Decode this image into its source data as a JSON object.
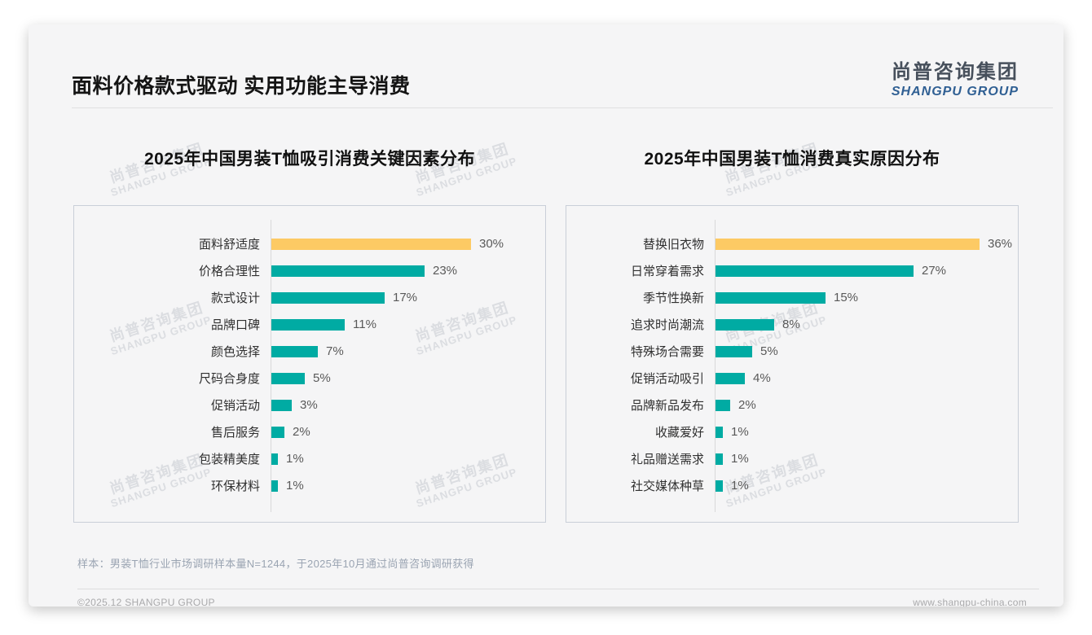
{
  "page": {
    "title": "面料价格款式驱动 实用功能主导消费",
    "logo": {
      "cn": "尚普咨询集团",
      "en": "SHANGPU GROUP"
    },
    "watermark": {
      "cn": "尚普咨询集团",
      "en": "SHANGPU GROUP"
    },
    "note": "样本：男装T恤行业市场调研样本量N=1244，于2025年10月通过尚普咨询调研获得",
    "footer": {
      "left": "©2025.12 SHANGPU GROUP",
      "right": "www.shangpu-china.com"
    }
  },
  "colors": {
    "bar_teal": "#00ABA3",
    "bar_yellow": "#FDCA64",
    "logo_blue": "#2F5F93",
    "logo_dark": "#47505C",
    "axis_gray": "#D9D9D9"
  },
  "chart_data": [
    {
      "type": "bar",
      "orientation": "horizontal",
      "title": "2025年中国男装T恤吸引消费关键因素分布",
      "categories": [
        "面料舒适度",
        "价格合理性",
        "款式设计",
        "品牌口碑",
        "颜色选择",
        "尺码合身度",
        "促销活动",
        "售后服务",
        "包装精美度",
        "环保材料"
      ],
      "values": [
        30,
        23,
        17,
        11,
        7,
        5,
        3,
        2,
        1,
        1
      ],
      "value_labels": [
        "30%",
        "23%",
        "17%",
        "11%",
        "7%",
        "5%",
        "3%",
        "2%",
        "1%",
        "1%"
      ],
      "unit": "%",
      "highlight_index": 0,
      "bar_color": "#00ABA3",
      "highlight_color": "#FDCA64",
      "grid": false,
      "legend": false,
      "value_label_position": "end"
    },
    {
      "type": "bar",
      "orientation": "horizontal",
      "title": "2025年中国男装T恤消费真实原因分布",
      "categories": [
        "替换旧衣物",
        "日常穿着需求",
        "季节性换新",
        "追求时尚潮流",
        "特殊场合需要",
        "促销活动吸引",
        "品牌新品发布",
        "收藏爱好",
        "礼品赠送需求",
        "社交媒体种草"
      ],
      "values": [
        36,
        27,
        15,
        8,
        5,
        4,
        2,
        1,
        1,
        1
      ],
      "value_labels": [
        "36%",
        "27%",
        "15%",
        "8%",
        "5%",
        "4%",
        "2%",
        "1%",
        "1%",
        "1%"
      ],
      "unit": "%",
      "highlight_index": 0,
      "bar_color": "#00ABA3",
      "highlight_color": "#FDCA64",
      "grid": false,
      "legend": false,
      "value_label_position": "end"
    }
  ]
}
